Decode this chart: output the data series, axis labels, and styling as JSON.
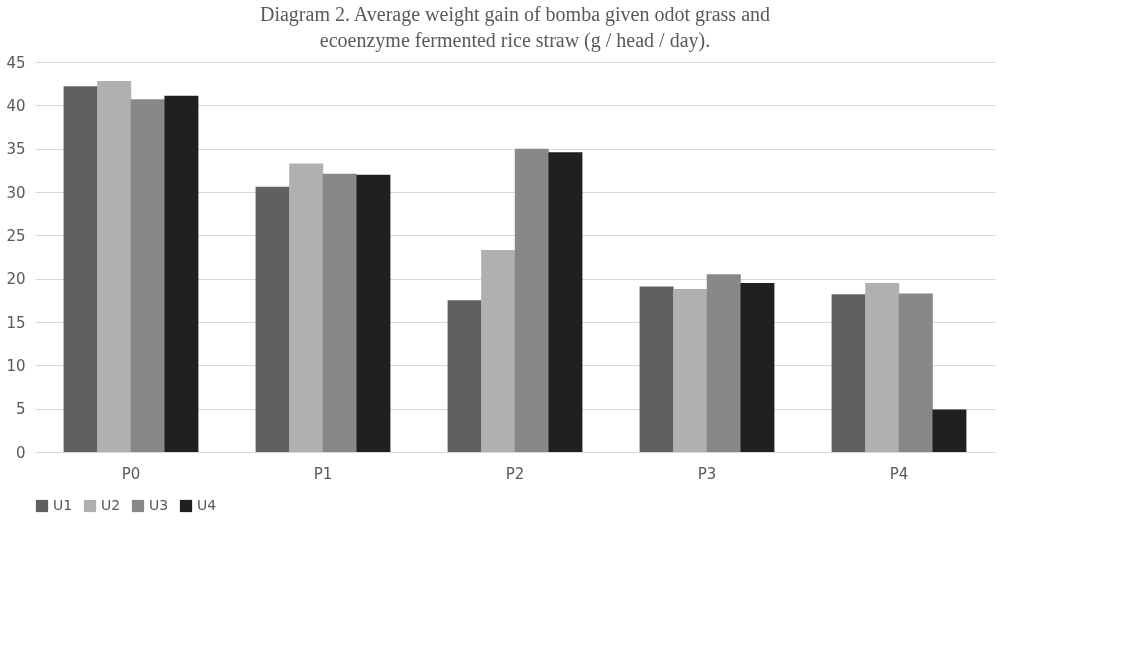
{
  "chart_data": {
    "type": "bar",
    "title": "Diagram 2. Average weight gain of bomba given odot grass and ecoenzyme fermented rice straw (g / head / day).",
    "categories": [
      "P0",
      "P1",
      "P2",
      "P3",
      "P4"
    ],
    "series": [
      {
        "name": "U1",
        "color": "#606060",
        "values": [
          42.2,
          30.6,
          17.5,
          19.1,
          18.2
        ]
      },
      {
        "name": "U2",
        "color": "#b0b0b0",
        "values": [
          42.8,
          33.3,
          23.3,
          18.8,
          19.5
        ]
      },
      {
        "name": "U3",
        "color": "#888888",
        "values": [
          40.7,
          32.1,
          35.0,
          20.5,
          18.3
        ]
      },
      {
        "name": "U4",
        "color": "#202020",
        "values": [
          41.1,
          32.0,
          34.6,
          19.5,
          4.9
        ]
      }
    ],
    "ylim": [
      0,
      45
    ],
    "yticks": [
      0,
      5,
      10,
      15,
      20,
      25,
      30,
      35,
      40,
      45
    ],
    "grid": "y",
    "legend": "bottom"
  }
}
